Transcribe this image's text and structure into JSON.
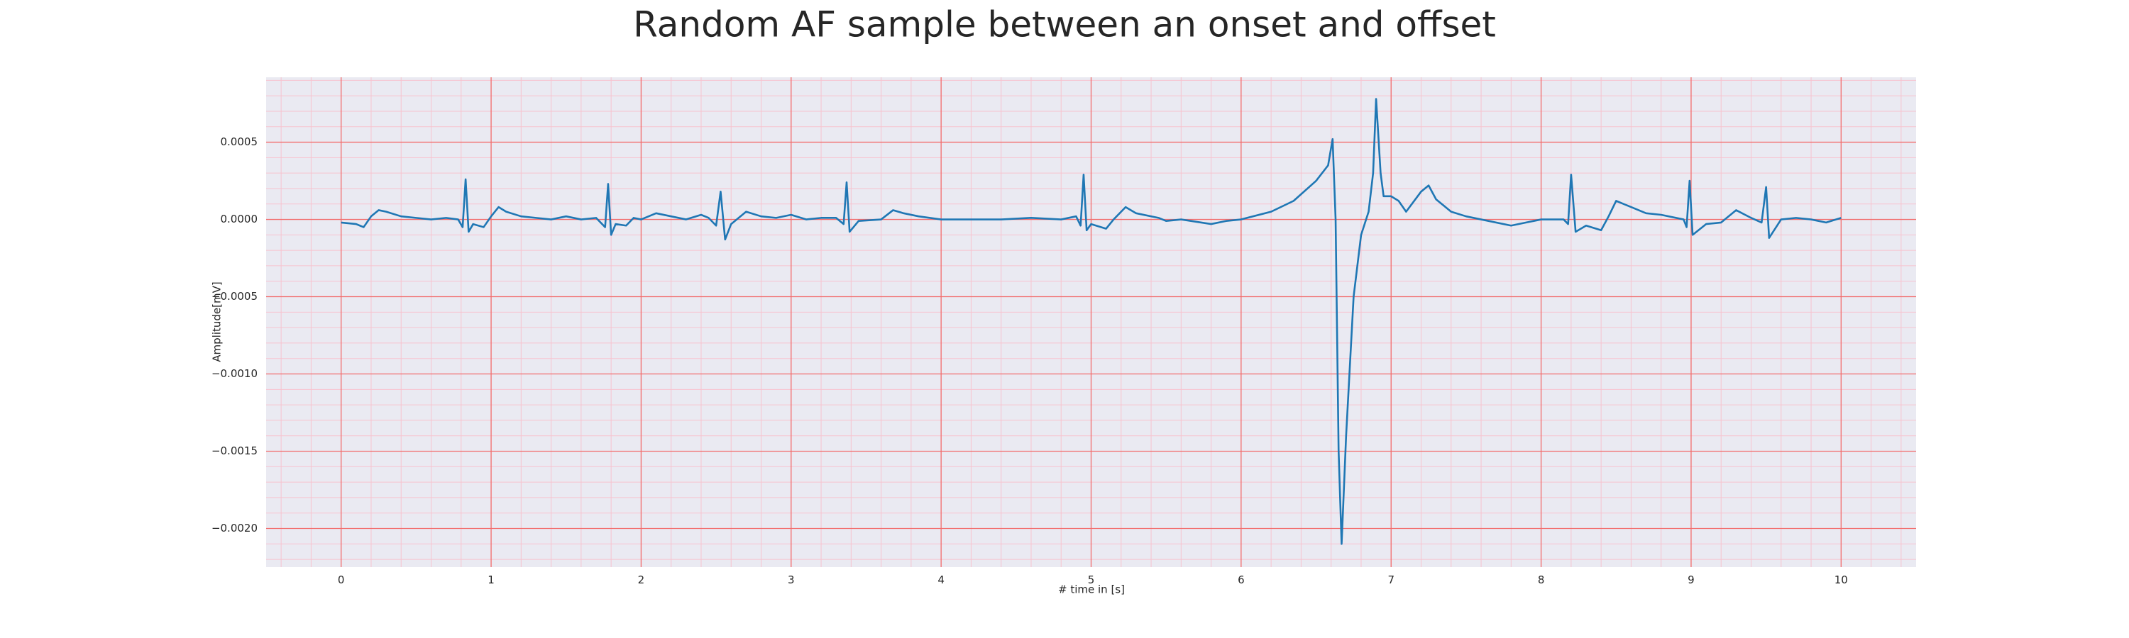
{
  "chart_data": {
    "type": "line",
    "title": "Random AF sample between an onset and offset",
    "x_label": "# time in [s]",
    "y_label": "Amplitude[mV]",
    "color": "#1f77b4",
    "grid": true,
    "grid_color": "#f26d6d",
    "minor_grid": true,
    "minor_grid_color": "#f7c3cf",
    "background": "#eaeaf2",
    "xlim": [
      -0.5,
      10.5
    ],
    "xticks": [
      0,
      1,
      2,
      3,
      4,
      5,
      6,
      7,
      8,
      9,
      10
    ],
    "ylim": [
      -0.00225,
      0.00092
    ],
    "yticks": [
      {
        "value": -0.002,
        "label": "−0.0020"
      },
      {
        "value": -0.0015,
        "label": "−0.0015"
      },
      {
        "value": -0.001,
        "label": "−0.0010"
      },
      {
        "value": -0.0005,
        "label": "−0.0005"
      },
      {
        "value": 0,
        "label": "0.0000"
      },
      {
        "value": 0.0005,
        "label": "0.0005"
      }
    ],
    "x": [
      0,
      0.1,
      0.15,
      0.2,
      0.25,
      0.3,
      0.4,
      0.5,
      0.6,
      0.7,
      0.78,
      0.81,
      0.83,
      0.85,
      0.88,
      0.95,
      1.0,
      1.05,
      1.1,
      1.2,
      1.3,
      1.4,
      1.5,
      1.6,
      1.7,
      1.76,
      1.78,
      1.8,
      1.83,
      1.9,
      1.95,
      2.0,
      2.1,
      2.2,
      2.3,
      2.4,
      2.45,
      2.5,
      2.53,
      2.56,
      2.6,
      2.7,
      2.8,
      2.9,
      3.0,
      3.1,
      3.2,
      3.3,
      3.35,
      3.37,
      3.39,
      3.45,
      3.6,
      3.68,
      3.75,
      3.85,
      4.0,
      4.2,
      4.4,
      4.6,
      4.8,
      4.9,
      4.93,
      4.95,
      4.97,
      5.0,
      5.1,
      5.15,
      5.23,
      5.3,
      5.45,
      5.5,
      5.6,
      5.8,
      5.9,
      6.0,
      6.2,
      6.35,
      6.5,
      6.58,
      6.61,
      6.63,
      6.65,
      6.67,
      6.7,
      6.75,
      6.8,
      6.85,
      6.88,
      6.9,
      6.93,
      6.95,
      7.0,
      7.05,
      7.1,
      7.2,
      7.25,
      7.3,
      7.4,
      7.5,
      7.6,
      7.8,
      7.9,
      8.0,
      8.15,
      8.18,
      8.2,
      8.23,
      8.3,
      8.4,
      8.45,
      8.5,
      8.6,
      8.7,
      8.8,
      8.95,
      8.97,
      8.99,
      9.01,
      9.1,
      9.2,
      9.3,
      9.4,
      9.47,
      9.5,
      9.52,
      9.6,
      9.7,
      9.8,
      9.9,
      10.0
    ],
    "values": [
      -2e-05,
      -3e-05,
      -5e-05,
      2e-05,
      6e-05,
      5e-05,
      2e-05,
      1e-05,
      0,
      1e-05,
      0,
      -5e-05,
      0.00026,
      -8e-05,
      -3e-05,
      -5e-05,
      2e-05,
      8e-05,
      5e-05,
      2e-05,
      1e-05,
      0,
      2e-05,
      0,
      1e-05,
      -5e-05,
      0.00023,
      -0.0001,
      -3e-05,
      -4e-05,
      1e-05,
      0,
      4e-05,
      2e-05,
      0,
      3e-05,
      1e-05,
      -4e-05,
      0.00018,
      -0.00013,
      -3e-05,
      5e-05,
      2e-05,
      1e-05,
      3e-05,
      0,
      1e-05,
      1e-05,
      -3e-05,
      0.00024,
      -8e-05,
      -1e-05,
      0,
      6e-05,
      4e-05,
      2e-05,
      0,
      0,
      0,
      1e-05,
      0,
      2e-05,
      -4e-05,
      0.00029,
      -7e-05,
      -3e-05,
      -6e-05,
      0,
      8e-05,
      4e-05,
      1e-05,
      -1e-05,
      0,
      -3e-05,
      -1e-05,
      0,
      5e-05,
      0.00012,
      0.00025,
      0.00035,
      0.00052,
      0,
      -0.0015,
      -0.0021,
      -0.0014,
      -0.0005,
      -0.0001,
      5e-05,
      0.0003,
      0.00078,
      0.0003,
      0.00015,
      0.00015,
      0.00012,
      5e-05,
      0.00018,
      0.00022,
      0.00013,
      5e-05,
      2e-05,
      0,
      -4e-05,
      -2e-05,
      0,
      0,
      -3e-05,
      0.00029,
      -8e-05,
      -4e-05,
      -7e-05,
      2e-05,
      0.00012,
      8e-05,
      4e-05,
      3e-05,
      0,
      -5e-05,
      0.00025,
      -0.0001,
      -3e-05,
      -2e-05,
      6e-05,
      1e-05,
      -2e-05,
      0.00021,
      -0.00012,
      0,
      1e-05,
      0,
      -2e-05,
      1e-05
    ]
  }
}
